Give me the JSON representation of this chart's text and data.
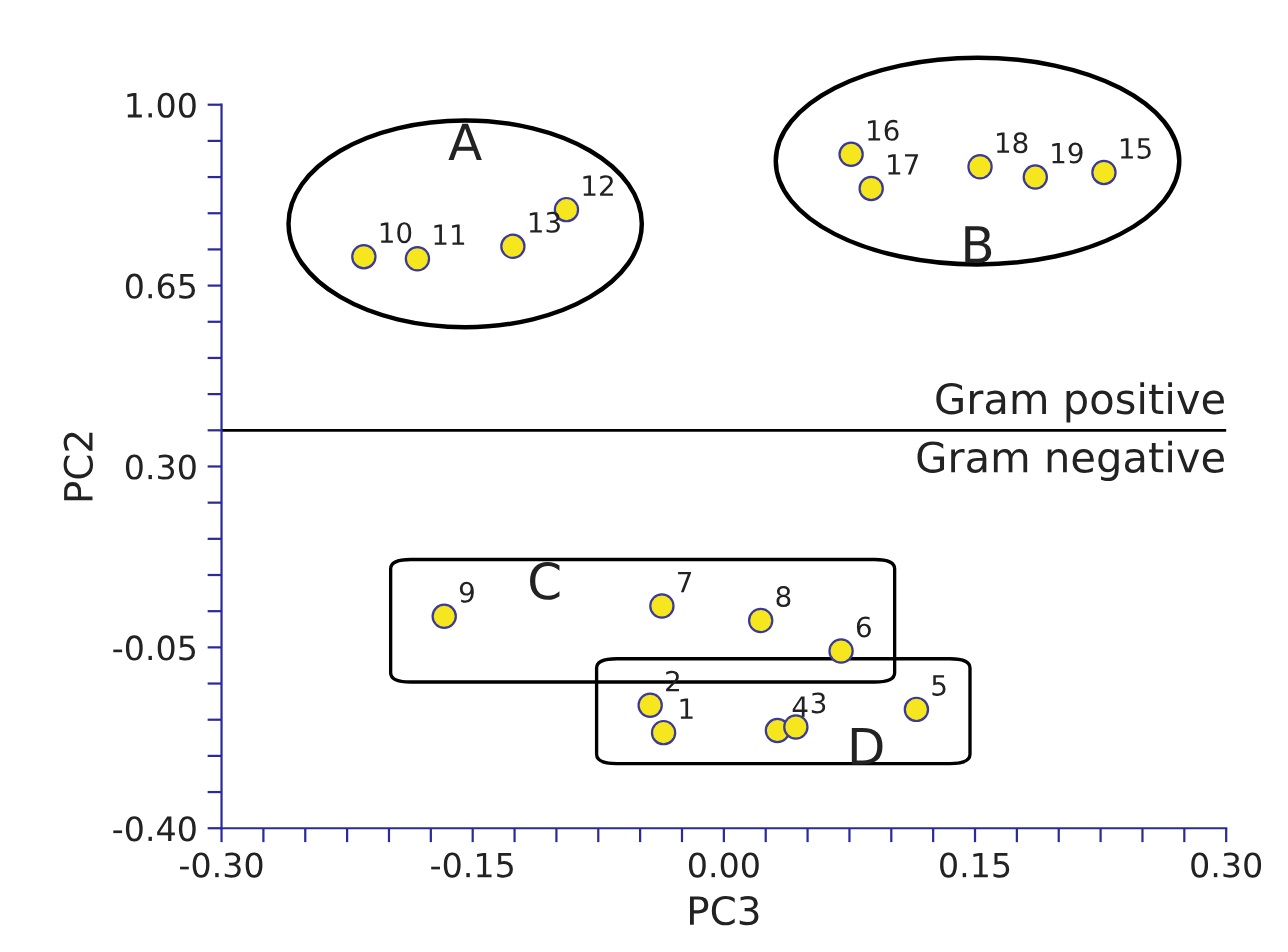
{
  "chart_data": {
    "type": "scatter",
    "xlabel": "PC3",
    "ylabel": "PC2",
    "xlim": [
      -0.3,
      0.3
    ],
    "ylim": [
      -0.4,
      1.0
    ],
    "xticks": [
      {
        "value": -0.3,
        "label": "-0.30"
      },
      {
        "value": -0.275,
        "label": null
      },
      {
        "value": -0.25,
        "label": null
      },
      {
        "value": -0.225,
        "label": null
      },
      {
        "value": -0.2,
        "label": null
      },
      {
        "value": -0.175,
        "label": null
      },
      -0.15,
      {
        "value": -0.125,
        "label": null
      },
      {
        "value": -0.1,
        "label": null
      },
      {
        "value": -0.075,
        "label": null
      },
      {
        "value": -0.05,
        "label": null
      },
      {
        "value": -0.025,
        "label": null
      },
      {
        "value": 0.0,
        "label": "0.00"
      },
      {
        "value": 0.025,
        "label": null
      },
      {
        "value": 0.05,
        "label": null
      },
      {
        "value": 0.075,
        "label": null
      },
      {
        "value": 0.1,
        "label": null
      },
      {
        "value": 0.125,
        "label": null
      },
      0.15,
      {
        "value": 0.175,
        "label": null
      },
      {
        "value": 0.2,
        "label": null
      },
      {
        "value": 0.225,
        "label": null
      },
      {
        "value": 0.25,
        "label": null
      },
      {
        "value": 0.275,
        "label": null
      },
      {
        "value": 0.3,
        "label": "0.30"
      }
    ],
    "yticks": [
      {
        "value": -0.4,
        "label": "-0.40"
      },
      {
        "value": -0.33,
        "label": null
      },
      {
        "value": -0.26,
        "label": null
      },
      {
        "value": -0.19,
        "label": null
      },
      {
        "value": -0.12,
        "label": null
      },
      -0.05,
      {
        "value": 0.02,
        "label": null
      },
      {
        "value": 0.09,
        "label": null
      },
      {
        "value": 0.16,
        "label": null
      },
      {
        "value": 0.23,
        "label": null
      },
      {
        "value": 0.3,
        "label": "0.30"
      },
      {
        "value": 0.37,
        "label": null
      },
      {
        "value": 0.44,
        "label": null
      },
      {
        "value": 0.51,
        "label": null
      },
      {
        "value": 0.58,
        "label": null
      },
      0.65,
      {
        "value": 0.72,
        "label": null
      },
      {
        "value": 0.79,
        "label": null
      },
      {
        "value": 0.86,
        "label": null
      },
      {
        "value": 0.93,
        "label": null
      },
      {
        "value": 1.0,
        "label": "1.00"
      }
    ],
    "grid": false,
    "legend": false,
    "marker": "circle",
    "series": [
      {
        "color": "#f5e61e",
        "x": [
          -0.215,
          -0.183,
          -0.126,
          -0.094
        ],
        "values": [
          0.706,
          0.702,
          0.726,
          0.797
        ]
      },
      {
        "color": "#f5e61e",
        "x": [
          0.076,
          0.088,
          0.153,
          0.186,
          0.227
        ],
        "values": [
          0.904,
          0.838,
          0.88,
          0.86,
          0.869
        ]
      },
      {
        "color": "#f5e61e",
        "x": [
          -0.167,
          -0.037,
          0.022,
          0.07
        ],
        "values": [
          0.01,
          0.03,
          0.002,
          -0.057
        ]
      },
      {
        "color": "#f5e61e",
        "x": [
          -0.044,
          -0.036,
          0.032,
          0.043,
          0.115
        ],
        "values": [
          -0.162,
          -0.215,
          -0.211,
          -0.204,
          -0.17
        ]
      }
    ],
    "ref_lines": [
      {
        "axis": "y",
        "value": 0.37,
        "label": "Gram positive",
        "color": "#000000"
      }
    ],
    "annotations": [
      "A",
      "B",
      "C",
      "D",
      "Gram negative",
      {
        "text": "10",
        "x": -0.215,
        "y": 0.706
      },
      {
        "text": "11",
        "x": -0.183,
        "y": 0.702
      },
      {
        "text": "13",
        "x": -0.126,
        "y": 0.726
      },
      {
        "text": "12",
        "x": -0.094,
        "y": 0.797
      },
      {
        "text": "16",
        "x": 0.076,
        "y": 0.904
      },
      {
        "text": "17",
        "x": 0.088,
        "y": 0.838
      },
      {
        "text": "18",
        "x": 0.153,
        "y": 0.88
      },
      {
        "text": "19",
        "x": 0.186,
        "y": 0.86
      },
      {
        "text": "15",
        "x": 0.227,
        "y": 0.869
      },
      {
        "text": "9",
        "x": -0.167,
        "y": 0.01
      },
      {
        "text": "7",
        "x": -0.037,
        "y": 0.03
      },
      {
        "text": "8",
        "x": 0.022,
        "y": 0.002
      },
      {
        "text": "6",
        "x": 0.07,
        "y": -0.057
      },
      {
        "text": "2",
        "x": -0.044,
        "y": -0.162
      },
      {
        "text": "1",
        "x": -0.036,
        "y": -0.215
      },
      {
        "text": "4",
        "x": 0.032,
        "y": -0.211
      },
      {
        "text": "3",
        "x": 0.043,
        "y": -0.204
      },
      {
        "text": "5",
        "x": 0.115,
        "y": -0.17
      }
    ]
  }
}
